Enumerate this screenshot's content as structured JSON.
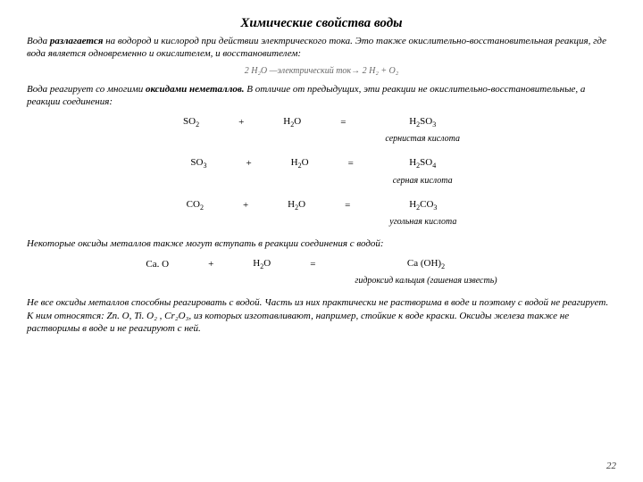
{
  "title": "Химические свойства воды",
  "para1_a": "Вода ",
  "para1_b": "разлагается",
  "para1_c": " на водород и кислород при действии электрического тока. Это также окислительно-восстановительная реакция, где вода является одновременно и окислителем, и восстановителем:",
  "eq_placeholder": "2 H₂O  —электрический ток→  2 H₂ + O₂",
  "para2_a": "Вода реагирует со многими ",
  "para2_b": "оксидами неметаллов.",
  "para2_c": " В отличие от предыдущих, эти реакции не окислительно-восстановительные, а реакции соединения:",
  "r1": {
    "a": "SO",
    "a_sub": "2",
    "plus": "+",
    "b": "H",
    "b_sub": "2",
    "b2": "O",
    "eq": "=",
    "c": "H",
    "c_sub": "2",
    "c2": "SO",
    "c2_sub": "3",
    "label": "сернистая кислота"
  },
  "r2": {
    "a": "SO",
    "a_sub": "3",
    "plus": "+",
    "b": "H",
    "b_sub": "2",
    "b2": "O",
    "eq": "=",
    "c": "H",
    "c_sub": "2",
    "c2": "SO",
    "c2_sub": "4",
    "label": "серная кислота"
  },
  "r3": {
    "a": "CO",
    "a_sub": "2",
    "plus": "+",
    "b": "H",
    "b_sub": "2",
    "b2": "O",
    "eq": "=",
    "c": "H",
    "c_sub": "2",
    "c2": "CO",
    "c2_sub": "3",
    "label": "угольная кислота"
  },
  "para3": "Некоторые оксиды металлов также могут вступать в реакции соединения с водой:",
  "r4": {
    "a": "Ca. O",
    "plus": "+",
    "b": "H",
    "b_sub": "2",
    "b2": "O",
    "eq": "=",
    "c": "Ca (OH)",
    "c_sub": "2",
    "label": "гидроксид кальция (гашеная известь)"
  },
  "para4": "Не все оксиды металлов способны реагировать с водой. Часть из них практически не растворима в воде и поэтому с водой не реагирует. К ним относятся: Zn. O, Ti. O₂ , Cr₂O₃, из которых изготавливают, например, стойкие к воде краски. Оксиды железа также не растворимы в воде и не реагируют с ней.",
  "page": "22"
}
